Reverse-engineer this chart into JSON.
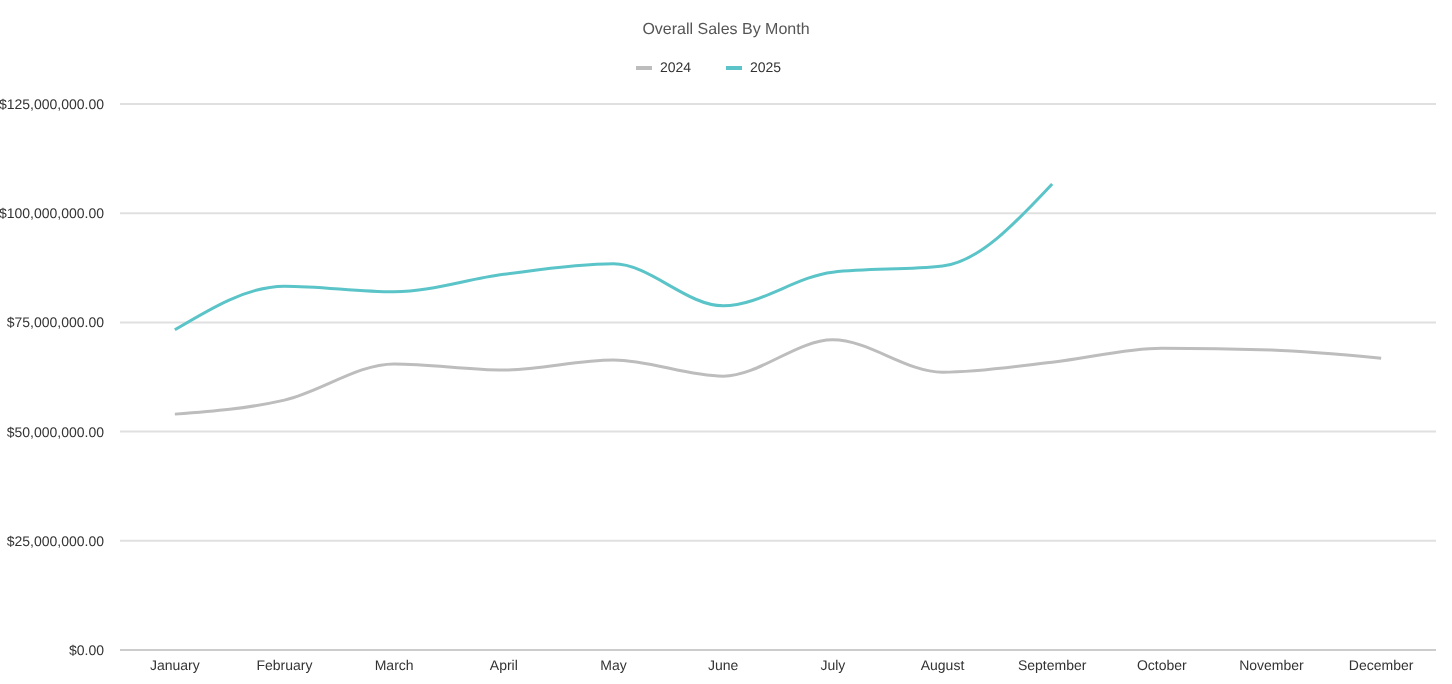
{
  "chart_data": {
    "type": "line",
    "title": "Overall Sales By Month",
    "categories": [
      "January",
      "February",
      "March",
      "April",
      "May",
      "June",
      "July",
      "August",
      "September",
      "October",
      "November",
      "December"
    ],
    "series": [
      {
        "name": "2024",
        "color": "#bdbdbd",
        "values": [
          54000000,
          57200000,
          65500000,
          64100000,
          66400000,
          62700000,
          71000000,
          63600000,
          65900000,
          69100000,
          68700000,
          66800000
        ]
      },
      {
        "name": "2025",
        "color": "#5bc4c8",
        "values": [
          73300000,
          83300000,
          82000000,
          86000000,
          88400000,
          78800000,
          86500000,
          87900000,
          106700000,
          null,
          null,
          null
        ]
      }
    ],
    "ylim": [
      0,
      125000000
    ],
    "yticks": [
      {
        "value": 0,
        "label": "$0.00"
      },
      {
        "value": 25000000,
        "label": "$25,000,000.00"
      },
      {
        "value": 50000000,
        "label": "$50,000,000.00"
      },
      {
        "value": 75000000,
        "label": "$75,000,000.00"
      },
      {
        "value": 100000000,
        "label": "$100,000,000.00"
      },
      {
        "value": 125000000,
        "label": "$125,000,000.00"
      }
    ],
    "grid": "y",
    "legend": "top",
    "marker": "none",
    "line_style": "solid"
  }
}
